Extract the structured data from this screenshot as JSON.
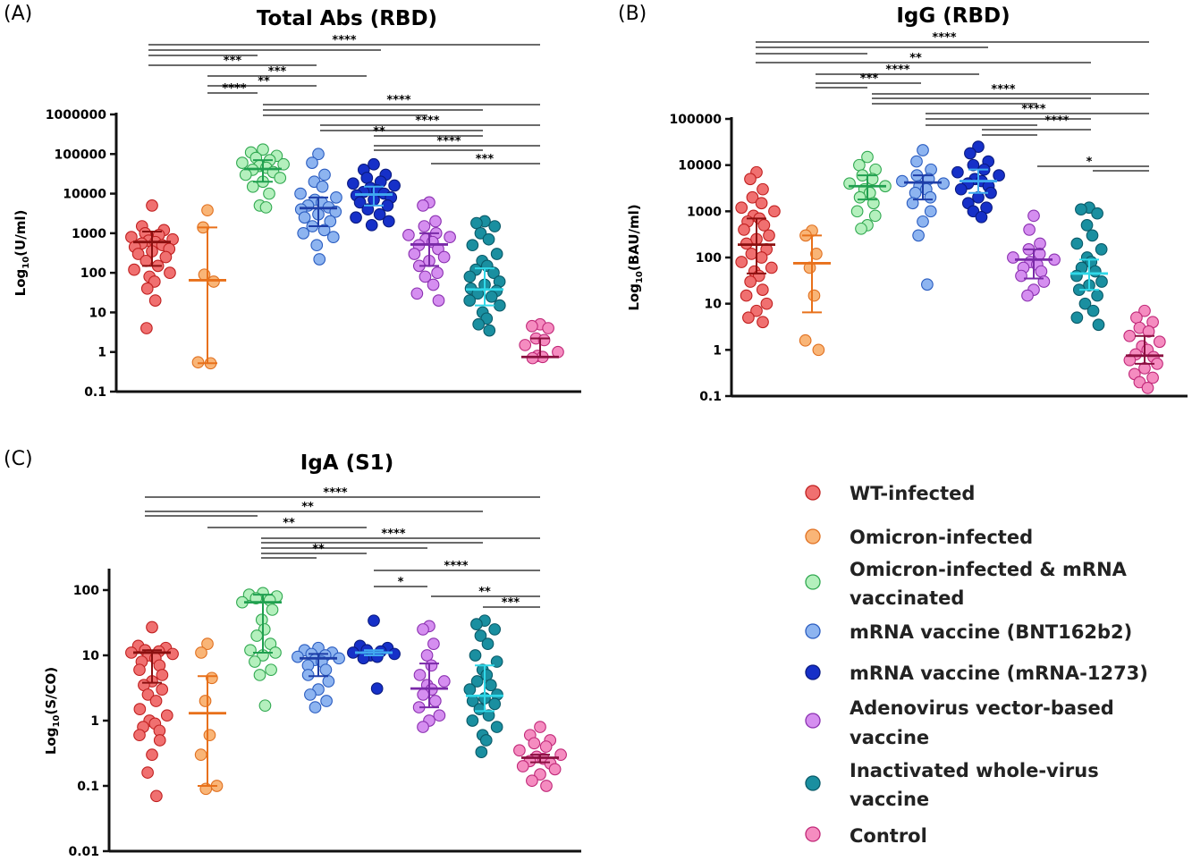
{
  "groups": [
    {
      "id": "wt",
      "label": "WT-infected",
      "fill": "#f07070",
      "stroke": "#c02020",
      "line": "#8b1010"
    },
    {
      "id": "omi",
      "label": "Omicron-infected",
      "fill": "#f9b577",
      "stroke": "#e07020",
      "line": "#e8701a"
    },
    {
      "id": "omivac",
      "label": "Omicron-infected & mRNA vaccinated",
      "fill": "#b4f0bd",
      "stroke": "#30a850",
      "line": "#20a050"
    },
    {
      "id": "bnt",
      "label": "mRNA vaccine (BNT162b2)",
      "fill": "#8db4f0",
      "stroke": "#2a5cc0",
      "line": "#1e3ea8"
    },
    {
      "id": "mrna1273",
      "label": "mRNA vaccine (mRNA-1273)",
      "fill": "#1630c8",
      "stroke": "#0a1a80",
      "line": "#40a8f0"
    },
    {
      "id": "adeno",
      "label": "Adenovirus vector-based vaccine",
      "fill": "#d58ef0",
      "stroke": "#8a30b0",
      "line": "#7a2aa8"
    },
    {
      "id": "inact",
      "label": "Inactivated whole-virus vaccine",
      "fill": "#1a8fa0",
      "stroke": "#0a5a68",
      "line": "#30d8e8"
    },
    {
      "id": "ctrl",
      "label": "Control",
      "fill": "#f58cc0",
      "stroke": "#c02878",
      "line": "#8a1040"
    }
  ],
  "legend": {
    "items": [
      {
        "lines": [
          "WT-infected"
        ]
      },
      {
        "lines": [
          "Omicron-infected"
        ]
      },
      {
        "lines": [
          "Omicron-infected & mRNA",
          "vaccinated"
        ]
      },
      {
        "lines": [
          "mRNA vaccine (BNT162b2)"
        ]
      },
      {
        "lines": [
          "mRNA vaccine (mRNA-1273)"
        ]
      },
      {
        "lines": [
          "Adenovirus vector-based",
          "vaccine"
        ]
      },
      {
        "lines": [
          "Inactivated whole-virus",
          "vaccine"
        ]
      },
      {
        "lines": [
          "Control"
        ]
      }
    ]
  },
  "chart_data": [
    {
      "type": "scatter",
      "panel": "(A)",
      "title": "Total Abs (RBD)",
      "ylabel_main": "Log",
      "ylabel_sub": "10",
      "ylabel_rest": "(U/ml)",
      "yscale": "log",
      "ylim": [
        0.1,
        1000000
      ],
      "ytick_labels": [
        "0.1",
        "1",
        "10",
        "100",
        "1000",
        "10000",
        "100000",
        "1000000"
      ],
      "series": [
        {
          "group": "wt",
          "median": 600,
          "q1": 150,
          "q3": 1100,
          "values": [
            5000,
            1500,
            1200,
            1000,
            900,
            800,
            700,
            650,
            600,
            550,
            500,
            450,
            400,
            350,
            300,
            250,
            200,
            150,
            120,
            100,
            80,
            60,
            40,
            20,
            4
          ]
        },
        {
          "group": "omi",
          "median": 65,
          "q1": 0.52,
          "q3": 1400,
          "values": [
            3800,
            1400,
            60,
            90,
            0.52,
            0.55
          ]
        },
        {
          "group": "omivac",
          "median": 42000,
          "q1": 20000,
          "q3": 70000,
          "values": [
            130000,
            110000,
            90000,
            80000,
            70000,
            60000,
            55000,
            50000,
            45000,
            40000,
            35000,
            30000,
            25000,
            20000,
            15000,
            10000,
            5000,
            4500
          ]
        },
        {
          "group": "bnt",
          "median": 4300,
          "q1": 1500,
          "q3": 8000,
          "values": [
            100000,
            60000,
            30000,
            20000,
            15000,
            10000,
            8000,
            7000,
            6000,
            5000,
            4500,
            4000,
            3500,
            3000,
            2500,
            2000,
            1500,
            1200,
            1000,
            800,
            500,
            220
          ]
        },
        {
          "group": "mrna1273",
          "median": 9500,
          "q1": 5000,
          "q3": 15000,
          "values": [
            55000,
            40000,
            30000,
            25000,
            20000,
            18000,
            16000,
            14000,
            12000,
            11000,
            10000,
            9000,
            8000,
            7000,
            6000,
            5000,
            4000,
            3000,
            2500,
            2000,
            1600
          ]
        },
        {
          "group": "adeno",
          "median": 520,
          "q1": 150,
          "q3": 1000,
          "values": [
            6000,
            5000,
            2000,
            1500,
            1000,
            900,
            800,
            700,
            600,
            500,
            400,
            300,
            250,
            200,
            150,
            100,
            80,
            50,
            30,
            20
          ]
        },
        {
          "group": "inact",
          "median": 38,
          "q1": 15,
          "q3": 130,
          "values": [
            2000,
            1800,
            1500,
            1000,
            700,
            500,
            300,
            200,
            150,
            120,
            100,
            80,
            60,
            50,
            40,
            35,
            30,
            25,
            20,
            15,
            10,
            7,
            5,
            3.5
          ]
        },
        {
          "group": "ctrl",
          "median": 0.75,
          "q1": 0.75,
          "q3": 2.2,
          "values": [
            5,
            4.5,
            4,
            2.2,
            2,
            1.5,
            1,
            0.8,
            0.75,
            0.7
          ]
        }
      ],
      "significance": [
        "****",
        "***",
        "***",
        "**",
        "****",
        "****",
        "****",
        "**",
        "****",
        "***"
      ]
    },
    {
      "type": "scatter",
      "panel": "(B)",
      "title": "IgG (RBD)",
      "ylabel_main": "Log",
      "ylabel_sub": "10",
      "ylabel_rest": "(BAU/ml)",
      "yscale": "log",
      "ylim": [
        0.1,
        100000
      ],
      "ytick_labels": [
        "0.1",
        "1",
        "10",
        "100",
        "1000",
        "10000",
        "100000"
      ],
      "series": [
        {
          "group": "wt",
          "median": 190,
          "q1": 45,
          "q3": 700,
          "values": [
            7000,
            5000,
            3000,
            2000,
            1500,
            1200,
            1000,
            800,
            700,
            600,
            500,
            400,
            300,
            250,
            200,
            150,
            120,
            100,
            80,
            60,
            50,
            40,
            30,
            20,
            15,
            10,
            7,
            5,
            4
          ]
        },
        {
          "group": "omi",
          "median": 75,
          "q1": 6.5,
          "q3": 300,
          "values": [
            380,
            300,
            120,
            60,
            15,
            1.6,
            1
          ]
        },
        {
          "group": "omivac",
          "median": 3500,
          "q1": 1800,
          "q3": 6000,
          "values": [
            15000,
            10000,
            8000,
            6000,
            5000,
            4000,
            3500,
            3000,
            2500,
            2000,
            1500,
            1000,
            800,
            500,
            420
          ]
        },
        {
          "group": "bnt",
          "median": 4200,
          "q1": 1800,
          "q3": 6000,
          "values": [
            21000,
            12000,
            8000,
            6000,
            5000,
            4500,
            4000,
            3500,
            3000,
            2500,
            2000,
            1500,
            1000,
            600,
            300,
            26
          ]
        },
        {
          "group": "mrna1273",
          "median": 4500,
          "q1": 2500,
          "q3": 8000,
          "values": [
            25000,
            18000,
            12000,
            10000,
            8000,
            7000,
            6000,
            5000,
            4500,
            4000,
            3500,
            3000,
            2500,
            2000,
            1500,
            1200,
            1000,
            750
          ]
        },
        {
          "group": "adeno",
          "median": 90,
          "q1": 35,
          "q3": 150,
          "values": [
            800,
            400,
            200,
            150,
            120,
            100,
            90,
            80,
            70,
            60,
            50,
            40,
            30,
            20,
            15
          ]
        },
        {
          "group": "inact",
          "median": 45,
          "q1": 20,
          "q3": 90,
          "values": [
            1200,
            1100,
            900,
            500,
            300,
            200,
            150,
            100,
            80,
            60,
            50,
            40,
            30,
            25,
            20,
            15,
            10,
            7,
            5,
            3.5
          ]
        },
        {
          "group": "ctrl",
          "median": 0.75,
          "q1": 0.5,
          "q3": 2,
          "values": [
            7,
            5,
            4,
            3,
            2.5,
            2,
            1.5,
            1.2,
            1,
            0.8,
            0.7,
            0.6,
            0.5,
            0.4,
            0.3,
            0.25,
            0.2,
            0.15
          ]
        }
      ],
      "significance": [
        "****",
        "**",
        "****",
        "***",
        "****",
        "****",
        "****",
        "*"
      ]
    },
    {
      "type": "scatter",
      "panel": "(C)",
      "title": "IgA (S1)",
      "ylabel_main": "Log",
      "ylabel_sub": "10",
      "ylabel_rest": "(S/CO)",
      "yscale": "log",
      "ylim": [
        0.01,
        200
      ],
      "ytick_labels": [
        "0.01",
        "0.1",
        "1",
        "10",
        "100"
      ],
      "series": [
        {
          "group": "wt",
          "median": 11,
          "q1": 3.8,
          "q3": 12,
          "values": [
            27,
            14,
            13,
            12,
            11.5,
            11,
            10.5,
            10,
            9,
            8,
            7,
            6,
            5,
            4,
            3.5,
            3,
            2.5,
            2,
            1.5,
            1.2,
            1,
            0.9,
            0.8,
            0.7,
            0.6,
            0.5,
            0.3,
            0.16,
            0.07
          ]
        },
        {
          "group": "omi",
          "median": 1.3,
          "q1": 0.1,
          "q3": 4.8,
          "values": [
            15,
            11,
            4.5,
            2,
            0.6,
            0.3,
            0.1,
            0.09
          ]
        },
        {
          "group": "omivac",
          "median": 65,
          "q1": 11,
          "q3": 85,
          "values": [
            90,
            85,
            80,
            75,
            70,
            65,
            50,
            35,
            25,
            20,
            15,
            12,
            11,
            10,
            8,
            6,
            5,
            1.7
          ]
        },
        {
          "group": "bnt",
          "median": 9,
          "q1": 4.8,
          "q3": 10.5,
          "values": [
            13,
            12,
            11,
            10.5,
            10,
            9.5,
            9,
            8.5,
            8,
            7,
            6,
            5,
            4,
            3,
            2.5,
            2,
            1.6
          ]
        },
        {
          "group": "mrna1273",
          "median": 11,
          "q1": 10,
          "q3": 12,
          "values": [
            34,
            14,
            13,
            12,
            11.5,
            11,
            10.5,
            10,
            9.5,
            9,
            3.1
          ]
        },
        {
          "group": "adeno",
          "median": 3.1,
          "q1": 1.6,
          "q3": 7.5,
          "values": [
            28,
            25,
            15,
            10,
            7,
            5,
            4,
            3.5,
            3,
            2.5,
            2,
            1.6,
            1.2,
            1,
            0.8
          ]
        },
        {
          "group": "inact",
          "median": 2.4,
          "q1": 1.4,
          "q3": 7,
          "values": [
            34,
            30,
            25,
            20,
            15,
            10,
            8,
            6,
            5,
            4,
            3.5,
            3,
            2.5,
            2.2,
            2,
            1.8,
            1.5,
            1.2,
            1,
            0.8,
            0.6,
            0.5,
            0.33
          ]
        },
        {
          "group": "ctrl",
          "median": 0.27,
          "q1": 0.23,
          "q3": 0.3,
          "values": [
            0.8,
            0.6,
            0.5,
            0.45,
            0.4,
            0.35,
            0.3,
            0.28,
            0.26,
            0.24,
            0.22,
            0.2,
            0.18,
            0.15,
            0.12,
            0.1
          ]
        }
      ],
      "significance": [
        "****",
        "**",
        "**",
        "****",
        "**",
        "****",
        "*",
        "**",
        "***"
      ]
    }
  ]
}
